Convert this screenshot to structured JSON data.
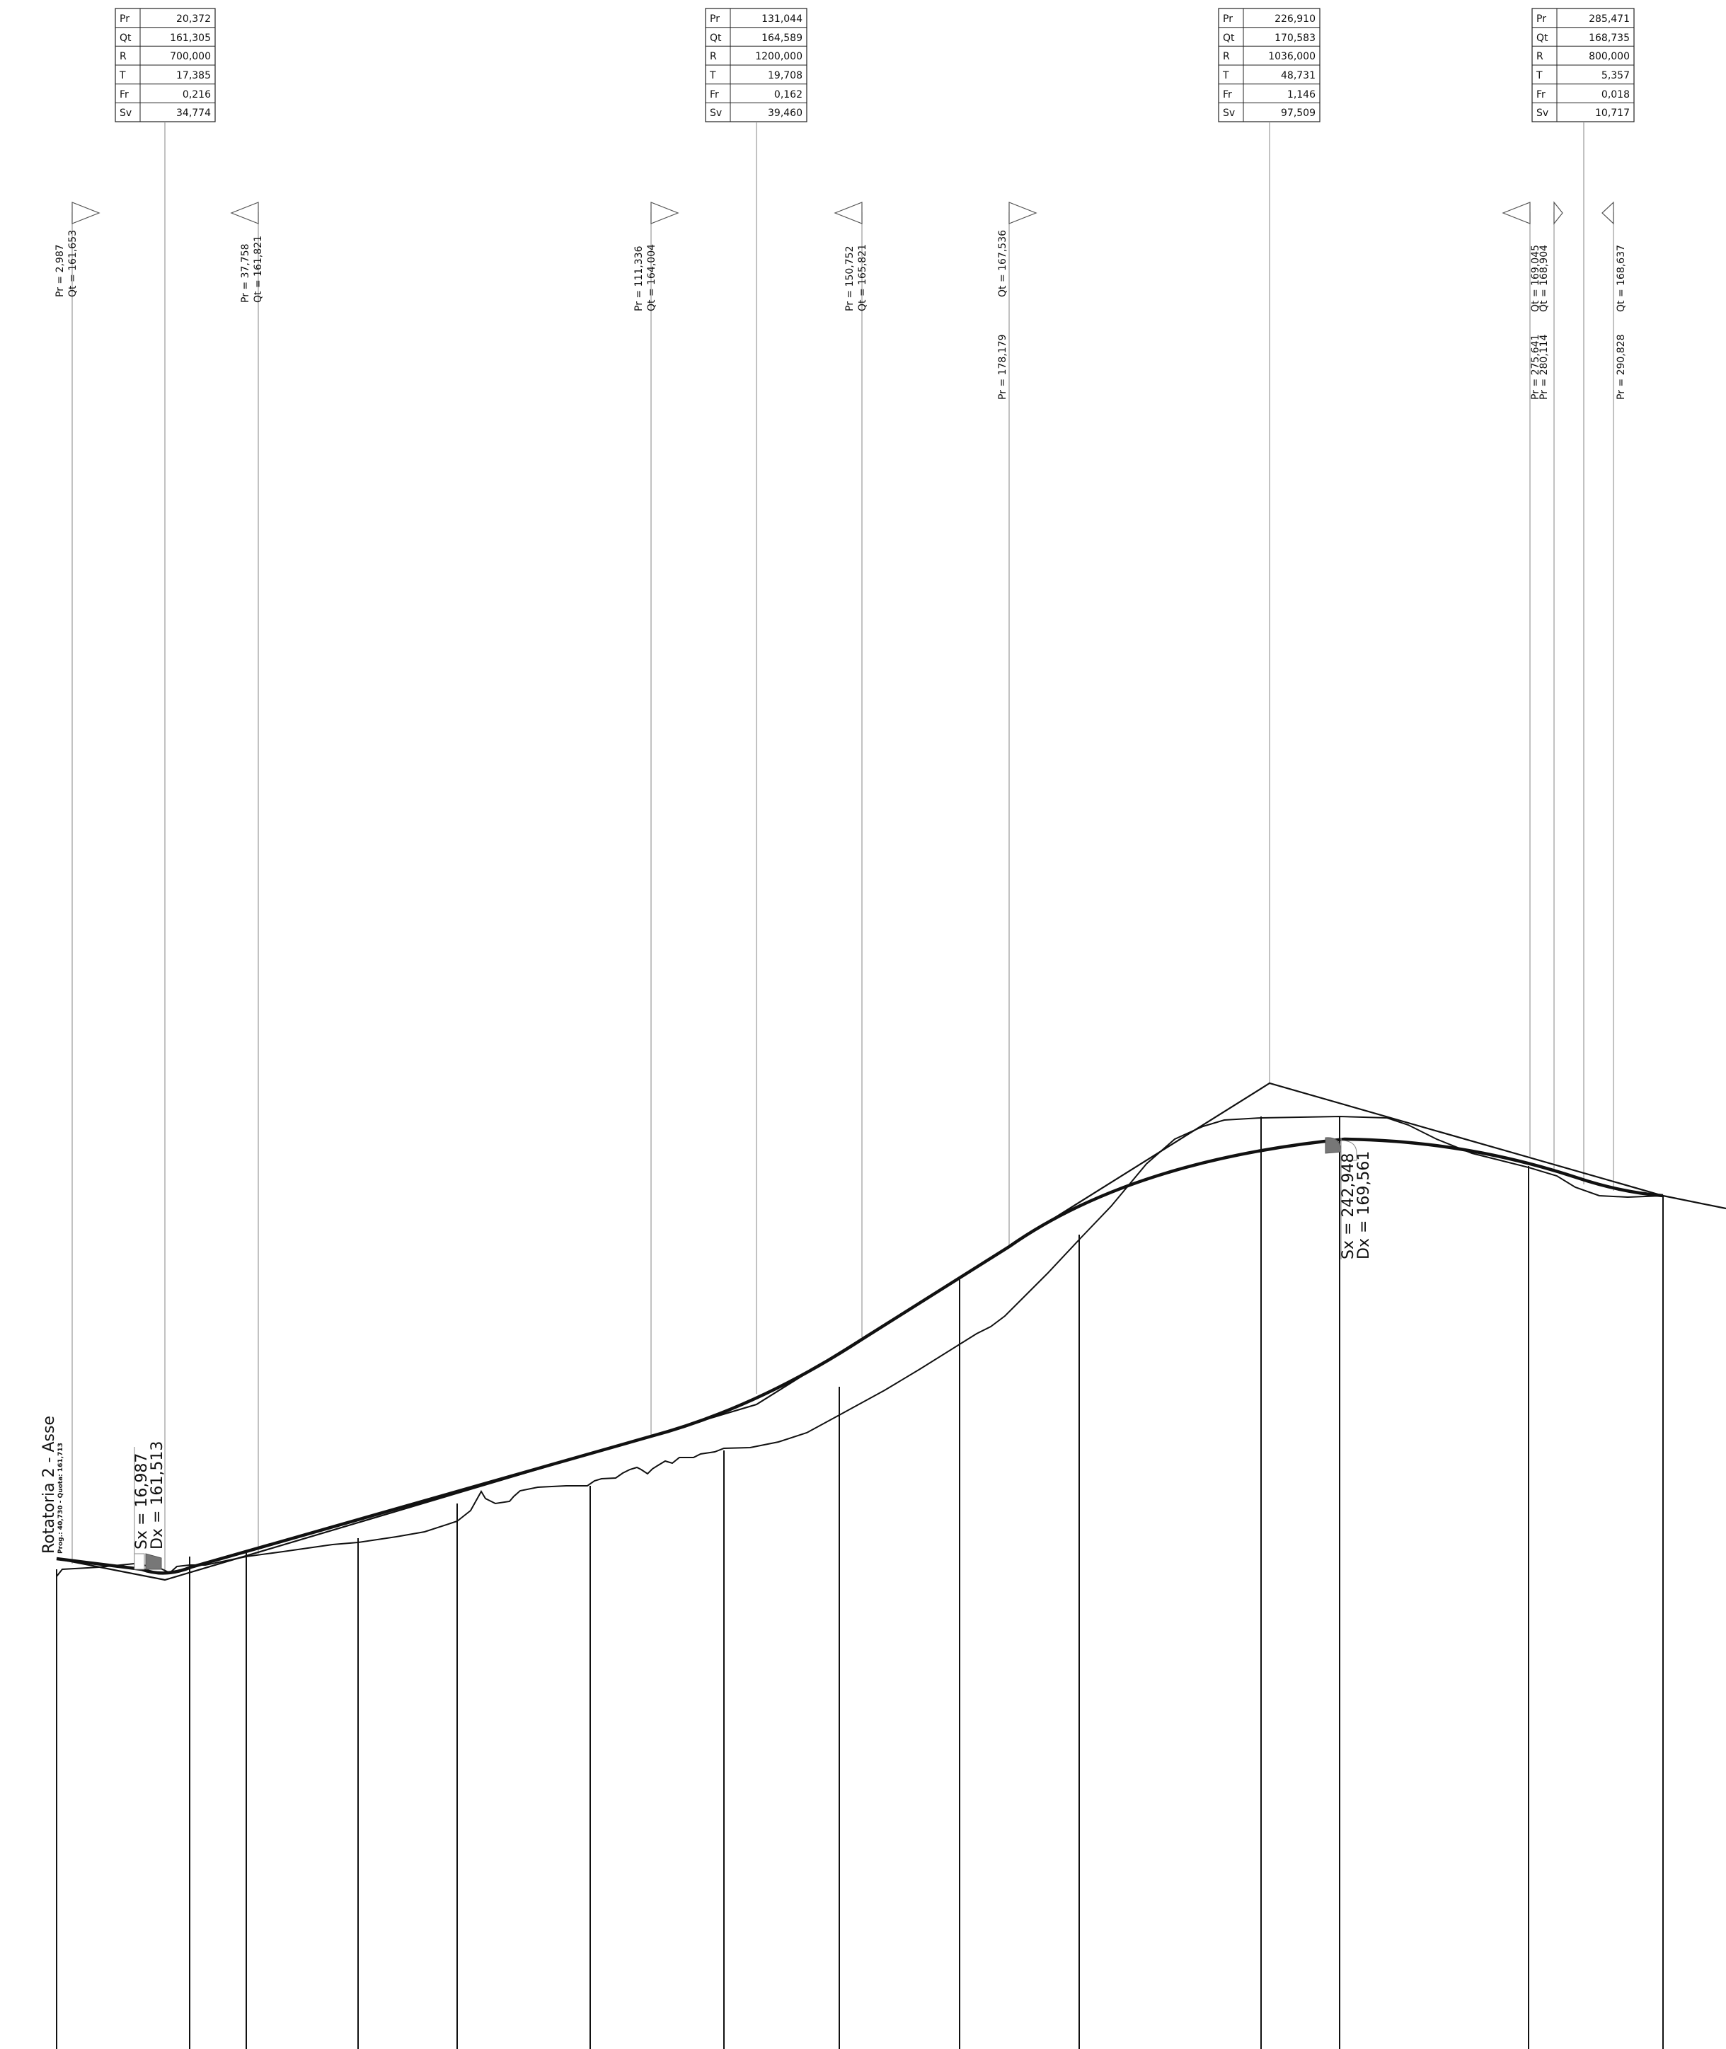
{
  "axis_label": {
    "title": "Rotatoria 2 - Asse",
    "subtitle": "Prog.: 40,730 - Quota: 161,713"
  },
  "vertex_tables": [
    {
      "rows": [
        {
          "k": "Pr",
          "v": "20,372"
        },
        {
          "k": "Qt",
          "v": "161,305"
        },
        {
          "k": "R",
          "v": "700,000"
        },
        {
          "k": "T",
          "v": "17,385"
        },
        {
          "k": "Fr",
          "v": "0,216"
        },
        {
          "k": "Sv",
          "v": "34,774"
        }
      ]
    },
    {
      "rows": [
        {
          "k": "Pr",
          "v": "131,044"
        },
        {
          "k": "Qt",
          "v": "164,589"
        },
        {
          "k": "R",
          "v": "1200,000"
        },
        {
          "k": "T",
          "v": "19,708"
        },
        {
          "k": "Fr",
          "v": "0,162"
        },
        {
          "k": "Sv",
          "v": "39,460"
        }
      ]
    },
    {
      "rows": [
        {
          "k": "Pr",
          "v": "226,910"
        },
        {
          "k": "Qt",
          "v": "170,583"
        },
        {
          "k": "R",
          "v": "1036,000"
        },
        {
          "k": "T",
          "v": "48,731"
        },
        {
          "k": "Fr",
          "v": "1,146"
        },
        {
          "k": "Sv",
          "v": "97,509"
        }
      ]
    },
    {
      "rows": [
        {
          "k": "Pr",
          "v": "285,471"
        },
        {
          "k": "Qt",
          "v": "168,735"
        },
        {
          "k": "R",
          "v": "800,000"
        },
        {
          "k": "T",
          "v": "5,357"
        },
        {
          "k": "Fr",
          "v": "0,018"
        },
        {
          "k": "Sv",
          "v": "10,717"
        }
      ]
    }
  ],
  "tangent_markers": [
    {
      "pr": "Pr = 2,987",
      "qt": "Qt = 161,653"
    },
    {
      "pr": "Pr = 37,758",
      "qt": "Qt = 161,821"
    },
    {
      "pr": "Pr = 111,336",
      "qt": "Qt = 164,004"
    },
    {
      "pr": "Pr = 150,752",
      "qt": "Qt = 165,821"
    },
    {
      "pr": "Pr = 178,179",
      "qt": "Qt = 167,536"
    },
    {
      "pr": "Pr = 275,641",
      "qt": "Qt = 169,045"
    },
    {
      "pr": "Pr = 280,114",
      "qt": "Qt = 168,904"
    },
    {
      "pr": "Pr = 290,828",
      "qt": "Qt = 168,637"
    }
  ],
  "sight_distances": [
    {
      "sx": "Sx = 16,987",
      "dx": "Dx = 161,513"
    },
    {
      "sx": "Sx = 242,948",
      "dx": "Dx = 169,561"
    }
  ]
}
